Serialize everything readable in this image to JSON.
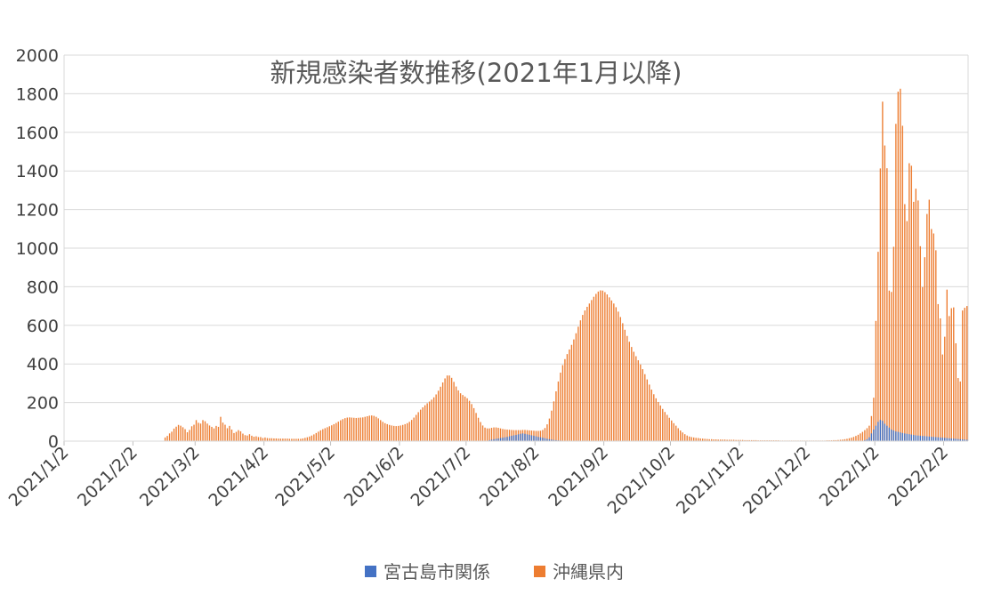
{
  "chart_data": {
    "type": "bar",
    "title": "新規感染者数推移(2021年1月以降)",
    "xlabel": "",
    "ylabel": "",
    "ylim": [
      0,
      2000
    ],
    "y_ticks": [
      0,
      200,
      400,
      600,
      800,
      1000,
      1200,
      1400,
      1600,
      1800,
      2000
    ],
    "grid": true,
    "legend_position": "bottom",
    "x_range": [
      "2021/1/2",
      "2022/2/12"
    ],
    "x_tick_labels": [
      "2021/1/2",
      "2021/2/2",
      "2021/3/2",
      "2021/4/2",
      "2021/5/2",
      "2021/6/2",
      "2021/7/2",
      "2021/8/2",
      "2021/9/2",
      "2021/10/2",
      "2021/11/2",
      "2021/12/2",
      "2022/1/2",
      "2022/2/2"
    ],
    "series": [
      {
        "name": "宮古島市関係",
        "color": "#4472C4",
        "values": [
          0,
          0,
          0,
          0,
          0,
          0,
          0,
          0,
          0,
          0,
          0,
          0,
          0,
          0,
          0,
          0,
          0,
          0,
          0,
          0,
          0,
          0,
          0,
          0,
          0,
          0,
          0,
          0,
          0,
          0,
          0,
          0,
          0,
          0,
          0,
          0,
          0,
          0,
          0,
          0,
          0,
          0,
          0,
          0,
          0,
          0,
          0,
          0,
          0,
          0,
          0,
          0,
          0,
          0,
          0,
          0,
          0,
          0,
          0,
          0,
          0,
          0,
          0,
          0,
          0,
          0,
          0,
          0,
          0,
          0,
          0,
          0,
          0,
          0,
          0,
          0,
          0,
          0,
          0,
          0,
          0,
          0,
          0,
          0,
          0,
          0,
          0,
          0,
          0,
          0,
          0,
          0,
          0,
          0,
          0,
          0,
          0,
          0,
          0,
          0,
          0,
          0,
          0,
          0,
          0,
          0,
          0,
          0,
          0,
          0,
          0,
          0,
          0,
          0,
          0,
          0,
          0,
          0,
          0,
          0,
          0,
          0,
          0,
          0,
          0,
          0,
          0,
          0,
          0,
          0,
          0,
          0,
          0,
          0,
          0,
          0,
          0,
          0,
          0,
          0,
          0,
          0,
          0,
          0,
          0,
          0,
          0,
          0,
          0,
          0,
          0,
          0,
          0,
          0,
          0,
          0,
          0,
          0,
          0,
          0,
          0,
          0,
          0,
          0,
          0,
          0,
          0,
          0,
          0,
          0,
          0,
          0,
          0,
          0,
          0,
          0,
          0,
          0,
          0,
          0,
          0,
          0,
          0,
          0,
          0,
          0,
          0,
          0,
          0,
          0,
          0,
          0,
          0,
          0,
          0,
          0,
          0,
          0,
          0,
          0,
          0,
          0,
          0,
          0,
          0,
          0,
          0,
          0,
          0,
          0,
          0,
          0,
          0,
          0,
          5,
          8,
          10,
          12,
          14,
          16,
          18,
          20,
          22,
          25,
          28,
          30,
          32,
          35,
          38,
          40,
          38,
          35,
          33,
          30,
          28,
          25,
          22,
          20,
          18,
          15,
          12,
          10,
          8,
          6,
          5,
          4,
          3,
          2,
          2,
          1,
          1,
          1,
          0,
          0,
          0,
          0,
          0,
          0,
          0,
          0,
          0,
          0,
          0,
          0,
          0,
          0,
          0,
          0,
          0,
          0,
          0,
          0,
          0,
          0,
          0,
          0,
          0,
          0,
          0,
          0,
          0,
          0,
          0,
          0,
          0,
          0,
          0,
          0,
          0,
          0,
          0,
          0,
          0,
          0,
          0,
          0,
          0,
          0,
          0,
          0,
          0,
          0,
          0,
          0,
          0,
          0,
          0,
          0,
          0,
          0,
          0,
          0,
          0,
          0,
          0,
          0,
          0,
          0,
          0,
          0,
          0,
          0,
          0,
          0,
          0,
          0,
          0,
          0,
          0,
          0,
          0,
          0,
          0,
          0,
          0,
          0,
          0,
          0,
          0,
          0,
          0,
          0,
          0,
          0,
          0,
          0,
          0,
          0,
          0,
          0,
          0,
          0,
          0,
          0,
          0,
          0,
          0,
          0,
          0,
          0,
          0,
          0,
          0,
          0,
          0,
          0,
          0,
          0,
          0,
          0,
          0,
          0,
          0,
          0,
          0,
          0,
          0,
          0,
          0,
          0,
          0,
          0,
          0,
          5,
          10,
          20,
          40,
          60,
          80,
          100,
          110,
          105,
          90,
          80,
          70,
          60,
          55,
          50,
          48,
          45,
          42,
          40,
          38,
          36,
          34,
          32,
          30,
          29,
          28,
          27,
          26,
          25,
          24,
          23,
          22,
          21,
          20,
          19,
          18,
          17,
          16,
          15,
          14,
          13,
          12,
          11,
          10,
          9,
          8,
          7
        ]
      },
      {
        "name": "沖縄県内",
        "color": "#ED7D31",
        "values": [
          19,
          27,
          40,
          49,
          65,
          75,
          84,
          80,
          72,
          62,
          46,
          58,
          77,
          85,
          109,
          95,
          91,
          109,
          103,
          91,
          81,
          74,
          66,
          79,
          74,
          126,
          96,
          85,
          67,
          79,
          60,
          42,
          48,
          57,
          51,
          39,
          31,
          29,
          36,
          28,
          23,
          25,
          21,
          21,
          16,
          19,
          16,
          15,
          15,
          14,
          14,
          13,
          13,
          13,
          13,
          13,
          12,
          12,
          12,
          12,
          12,
          12,
          14,
          17,
          20,
          24,
          29,
          35,
          42,
          49,
          56,
          62,
          67,
          72,
          77,
          82,
          88,
          94,
          101,
          108,
          114,
          119,
          122,
          123,
          122,
          121,
          120,
          121,
          122,
          123,
          126,
          129,
          132,
          133,
          131,
          126,
          118,
          109,
          100,
          93,
          88,
          84,
          81,
          79,
          78,
          79,
          81,
          84,
          88,
          93,
          100,
          110,
          122,
          136,
          150,
          163,
          175,
          186,
          196,
          205,
          215,
          227,
          242,
          261,
          282,
          304,
          325,
          340,
          340,
          328,
          307,
          283,
          263,
          248,
          239,
          231,
          222,
          209,
          192,
          171,
          146,
          121,
          99,
          81,
          70,
          66,
          66,
          69,
          71,
          71,
          69,
          66,
          63,
          61,
          60,
          59,
          58,
          57,
          57,
          57,
          57,
          58,
          58,
          57,
          56,
          55,
          54,
          53,
          53,
          54,
          58,
          68,
          87,
          117,
          158,
          206,
          258,
          309,
          355,
          394,
          425,
          451,
          475,
          499,
          527,
          559,
          593,
          626,
          654,
          677,
          696,
          713,
          731,
          748,
          763,
          775,
          781,
          780,
          772,
          760,
          745,
          729,
          713,
          694,
          671,
          643,
          611,
          577,
          545,
          515,
          488,
          463,
          440,
          419,
          397,
          373,
          347,
          320,
          293,
          267,
          243,
          222,
          203,
          185,
          167,
          151,
          136,
          121,
          107,
          93,
          80,
          67,
          55,
          45,
          36,
          29,
          24,
          21,
          19,
          17,
          16,
          14,
          13,
          12,
          11,
          10,
          10,
          9,
          9,
          8,
          8,
          8,
          8,
          7,
          7,
          7,
          7,
          6,
          6,
          6,
          6,
          5,
          5,
          5,
          5,
          5,
          5,
          4,
          4,
          4,
          4,
          4,
          4,
          4,
          4,
          4,
          4,
          3,
          3,
          3,
          3,
          3,
          3,
          3,
          3,
          3,
          3,
          3,
          3,
          3,
          3,
          3,
          3,
          3,
          3,
          3,
          3,
          3,
          4,
          4,
          4,
          5,
          5,
          6,
          7,
          8,
          10,
          12,
          15,
          18,
          22,
          27,
          33,
          40,
          48,
          57,
          67,
          80,
          130,
          225,
          623,
          981,
          1413,
          1759,
          1532,
          1414,
          780,
          773,
          1007,
          1644,
          1811,
          1826,
          1634,
          1228,
          1140,
          1440,
          1427,
          1240,
          1308,
          1247,
          1010,
          798,
          953,
          1177,
          1251,
          1099,
          1076,
          989,
          710,
          636,
          449,
          541,
          785,
          648,
          689,
          693,
          507,
          327,
          309,
          677,
          691,
          700
        ]
      }
    ]
  }
}
